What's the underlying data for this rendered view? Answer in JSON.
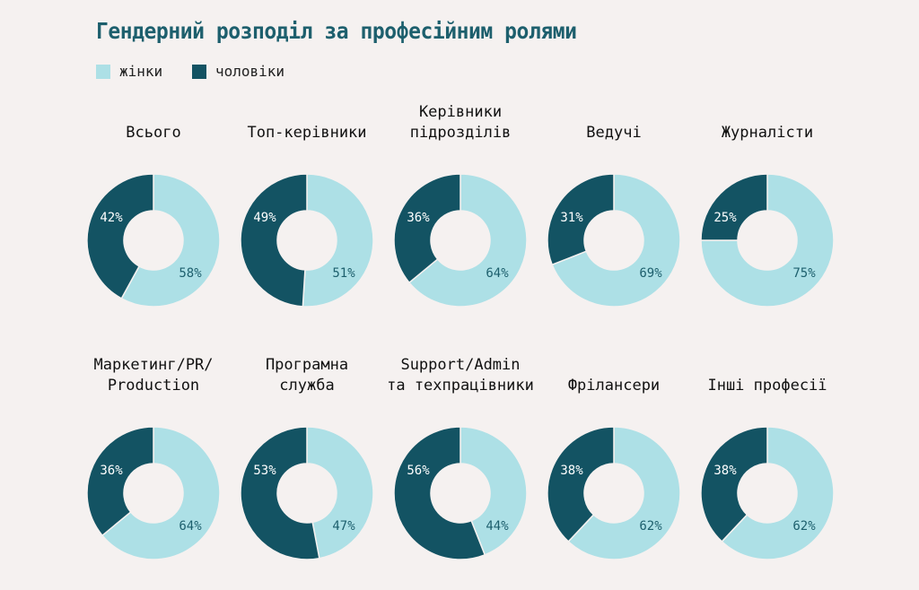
{
  "chart_data": {
    "type": "donut",
    "title": "Гендерний розподіл за професійним ролями",
    "legend": [
      {
        "name": "жінки",
        "color": "#ade0e6"
      },
      {
        "name": "чоловіки",
        "color": "#135363"
      }
    ],
    "charts": [
      {
        "label": "Всього",
        "women": 58,
        "men": 42
      },
      {
        "label": "Топ-керівники",
        "women": 51,
        "men": 49
      },
      {
        "label": "Керівники\nпідрозділів",
        "women": 64,
        "men": 36
      },
      {
        "label": "Ведучі",
        "women": 69,
        "men": 31
      },
      {
        "label": "Журналісти",
        "women": 75,
        "men": 25
      },
      {
        "label": "Маркетинг/PR/\nProduction",
        "women": 64,
        "men": 36
      },
      {
        "label": "Програмна\nслужба",
        "women": 47,
        "men": 53
      },
      {
        "label": "Support/Admin\nта техпрацівники",
        "women": 44,
        "men": 56
      },
      {
        "label": "Фрілансери",
        "women": 62,
        "men": 38
      },
      {
        "label": "Інші професії",
        "women": 62,
        "men": 38
      }
    ]
  }
}
